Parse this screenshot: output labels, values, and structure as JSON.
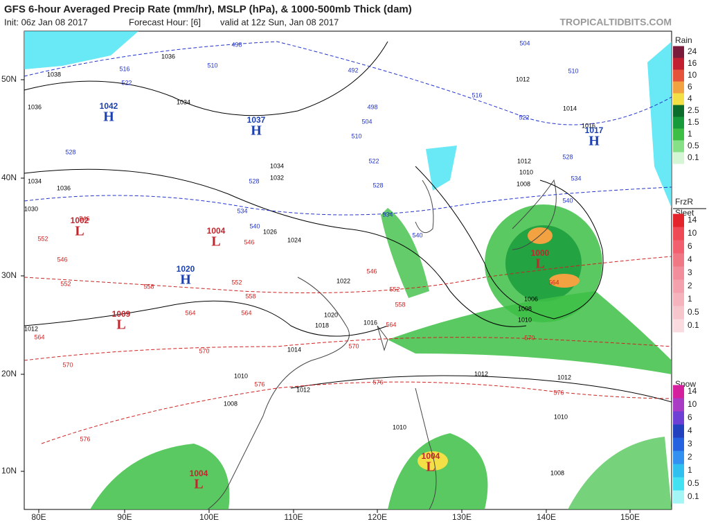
{
  "header": {
    "title": "GFS 6-hour Averaged Precip Rate (mm/hr), MSLP (hPa), & 1000-500mb Thick (dam)",
    "init": "Init: 06z Jan 08 2017",
    "forecast": "Forecast Hour: [6]",
    "valid": "valid at 12z Sun, Jan 08 2017",
    "site": "TROPICALTIDBITS.COM"
  },
  "map": {
    "lat_labels": [
      "50N",
      "40N",
      "30N",
      "20N",
      "10N"
    ],
    "lon_labels": [
      "80E",
      "90E",
      "100E",
      "110E",
      "120E",
      "130E",
      "140E",
      "150E"
    ],
    "centers": [
      {
        "symbol": "H",
        "value": "1042",
        "color": "#1a3fb0"
      },
      {
        "symbol": "H",
        "value": "1037",
        "color": "#1a3fb0"
      },
      {
        "symbol": "H",
        "value": "1017",
        "color": "#1a3fb0"
      },
      {
        "symbol": "H",
        "value": "1020",
        "color": "#1a3fb0"
      },
      {
        "symbol": "L",
        "value": "1002",
        "color": "#c0262d"
      },
      {
        "symbol": "L",
        "value": "1004",
        "color": "#c0262d"
      },
      {
        "symbol": "L",
        "value": "1009",
        "color": "#c0262d"
      },
      {
        "symbol": "L",
        "value": "1004",
        "color": "#c0262d"
      },
      {
        "symbol": "L",
        "value": "1004",
        "color": "#c0262d"
      },
      {
        "symbol": "L",
        "value": "1000",
        "color": "#c0262d"
      }
    ],
    "isobar_labels": [
      "1036",
      "1038",
      "1036",
      "1034",
      "1034",
      "1036",
      "1030",
      "1034",
      "1032",
      "1026",
      "1024",
      "1022",
      "1020",
      "1018",
      "1016",
      "1014",
      "1012",
      "1010",
      "1008",
      "1012",
      "1012",
      "1012",
      "1010",
      "1008",
      "1012",
      "1014",
      "1016",
      "1012",
      "1010",
      "1008",
      "1006",
      "1008",
      "1010",
      "1010"
    ],
    "thickness_cold_labels": [
      "498",
      "516",
      "522",
      "510",
      "492",
      "498",
      "504",
      "510",
      "522",
      "528",
      "534",
      "540",
      "528",
      "534",
      "540",
      "528",
      "516",
      "522",
      "528",
      "534",
      "540",
      "504",
      "510"
    ],
    "thickness_warm_labels": [
      "546",
      "552",
      "546",
      "552",
      "558",
      "564",
      "570",
      "576",
      "576",
      "570",
      "564",
      "558",
      "552",
      "546",
      "558",
      "552",
      "546",
      "564",
      "570",
      "564",
      "576",
      "570",
      "576",
      "564"
    ]
  },
  "legends": [
    {
      "title": "Rain",
      "items": [
        {
          "label": "24",
          "color": "#7b1b3c"
        },
        {
          "label": "16",
          "color": "#c21f30"
        },
        {
          "label": "10",
          "color": "#e5533a"
        },
        {
          "label": "6",
          "color": "#f3a241"
        },
        {
          "label": "4",
          "color": "#f2e046"
        },
        {
          "label": "2.5",
          "color": "#0b6c2b"
        },
        {
          "label": "1.5",
          "color": "#169a3b"
        },
        {
          "label": "1",
          "color": "#3dbf45"
        },
        {
          "label": "0.5",
          "color": "#86e086"
        },
        {
          "label": "0.1",
          "color": "#d4f6d4"
        }
      ]
    },
    {
      "title": "FrzR",
      "subtitle": "Sleet",
      "items": [
        {
          "label": "14",
          "color": "#e3242b"
        },
        {
          "label": "10",
          "color": "#ee4a55"
        },
        {
          "label": "6",
          "color": "#f2606f"
        },
        {
          "label": "4",
          "color": "#f07885"
        },
        {
          "label": "3",
          "color": "#f28e9b"
        },
        {
          "label": "2",
          "color": "#f3a1ad"
        },
        {
          "label": "1",
          "color": "#f5b3bd"
        },
        {
          "label": "0.5",
          "color": "#f7c6cd"
        },
        {
          "label": "0.1",
          "color": "#fadbe0"
        }
      ]
    },
    {
      "title": "Snow",
      "items": [
        {
          "label": "14",
          "color": "#d4209c"
        },
        {
          "label": "10",
          "color": "#a83cc4"
        },
        {
          "label": "6",
          "color": "#6e3fd4"
        },
        {
          "label": "4",
          "color": "#2340bf"
        },
        {
          "label": "3",
          "color": "#2462e0"
        },
        {
          "label": "2",
          "color": "#3190f0"
        },
        {
          "label": "1",
          "color": "#2fc0ef"
        },
        {
          "label": "0.5",
          "color": "#43e2f2"
        },
        {
          "label": "0.1",
          "color": "#a4f6f6"
        }
      ]
    }
  ]
}
